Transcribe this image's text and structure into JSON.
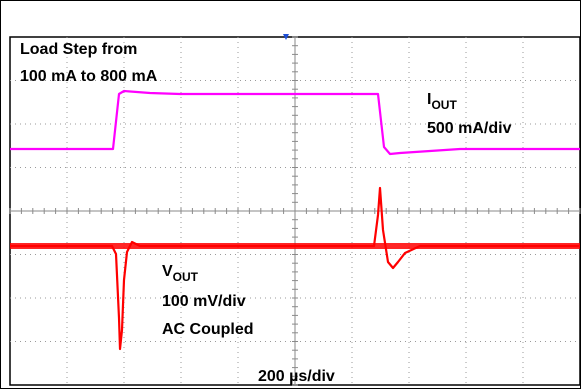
{
  "chart_data": {
    "type": "line",
    "annotation": {
      "line1": "Load Step from",
      "line2": "100 mA to 800 mA"
    },
    "timebase": "200 µs/div",
    "series": [
      {
        "channel": "iout",
        "label_main": "I",
        "label_sub": "OUT",
        "scale": "500 mA/div",
        "color": "#ff00ff",
        "values_mA": [
          100,
          100,
          800,
          800,
          100,
          100
        ],
        "transitions_us": [
          380,
          1060
        ]
      },
      {
        "channel": "vout",
        "label_main": "V",
        "label_sub": "OUT",
        "scale": "100 mV/div",
        "coupling": "AC Coupled",
        "color": "#ff0000",
        "undershoot_mV": -200,
        "overshoot_mV": 100
      }
    ],
    "grid": "dotted",
    "divisions": {
      "x": 10,
      "y": 8
    }
  }
}
